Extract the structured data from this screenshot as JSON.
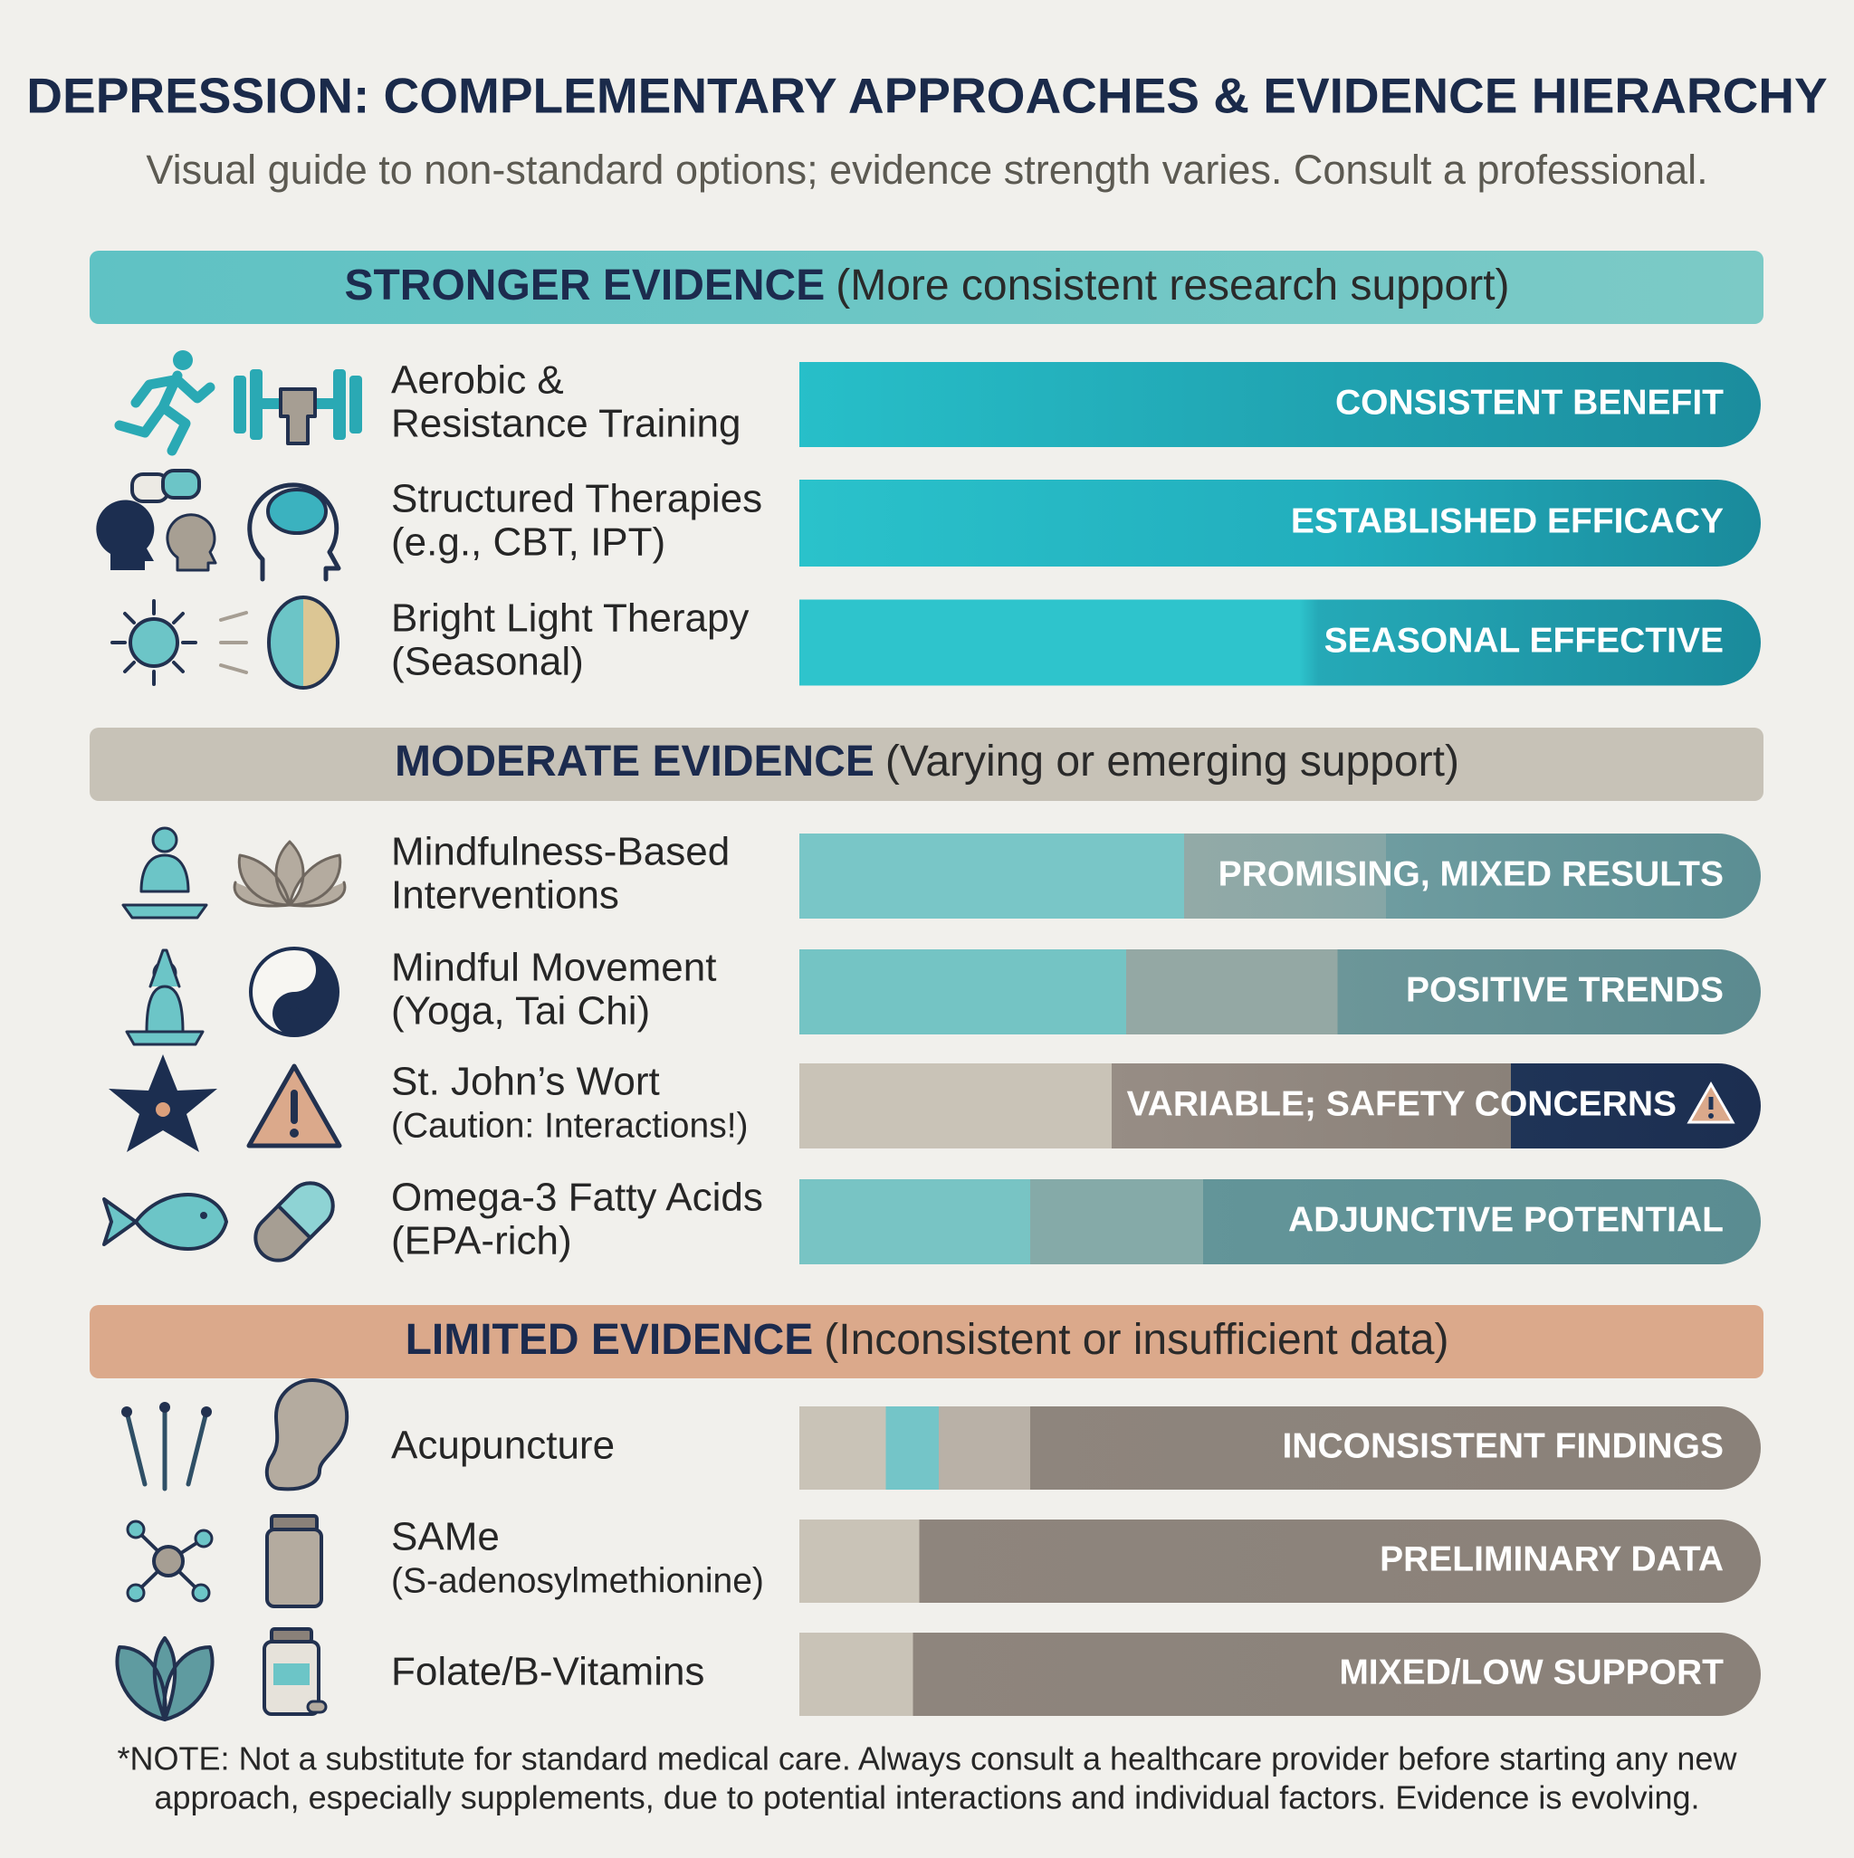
{
  "header": {
    "title": "DEPRESSION: COMPLEMENTARY APPROACHES & EVIDENCE HIERARCHY",
    "subtitle": "Visual guide to non-standard options; evidence strength varies. Consult a professional."
  },
  "sections": [
    {
      "heading": "STRONGER EVIDENCE",
      "description": "(More consistent research support)",
      "items": [
        {
          "name": [
            "Aerobic &",
            "Resistance Training"
          ],
          "rating": "CONSISTENT BENEFIT"
        },
        {
          "name": [
            "Structured Therapies",
            "(e.g., CBT, IPT)"
          ],
          "rating": "ESTABLISHED EFFICACY"
        },
        {
          "name": [
            "Bright Light Therapy",
            "(Seasonal)"
          ],
          "rating": "SEASONAL EFFECTIVE"
        }
      ]
    },
    {
      "heading": "MODERATE EVIDENCE",
      "description": "(Varying or emerging support)",
      "items": [
        {
          "name": [
            "Mindfulness-Based",
            "Interventions"
          ],
          "rating": "PROMISING, MIXED RESULTS"
        },
        {
          "name": [
            "Mindful Movement",
            "(Yoga, Tai Chi)"
          ],
          "rating": "POSITIVE TRENDS"
        },
        {
          "name": [
            "St. John’s Wort",
            "(Caution: Interactions!)"
          ],
          "rating": "VARIABLE; SAFETY CONCERNS"
        },
        {
          "name": [
            "Omega-3 Fatty Acids",
            "(EPA-rich)"
          ],
          "rating": "ADJUNCTIVE POTENTIAL"
        }
      ]
    },
    {
      "heading": "LIMITED EVIDENCE",
      "description": "(Inconsistent or insufficient data)",
      "items": [
        {
          "name": [
            "Acupuncture"
          ],
          "rating": "INCONSISTENT FINDINGS"
        },
        {
          "name": [
            "SAMe",
            "(S-adenosylmethionine)"
          ],
          "rating": "PRELIMINARY DATA"
        },
        {
          "name": [
            "Folate/B-Vitamins"
          ],
          "rating": "MIXED/LOW SUPPORT"
        }
      ]
    }
  ],
  "note": [
    "*NOTE: Not a substitute for standard medical care. Always consult a healthcare provider before starting any new",
    "approach, especially supplements, due to potential interactions and individual factors. Evidence is evolving."
  ]
}
